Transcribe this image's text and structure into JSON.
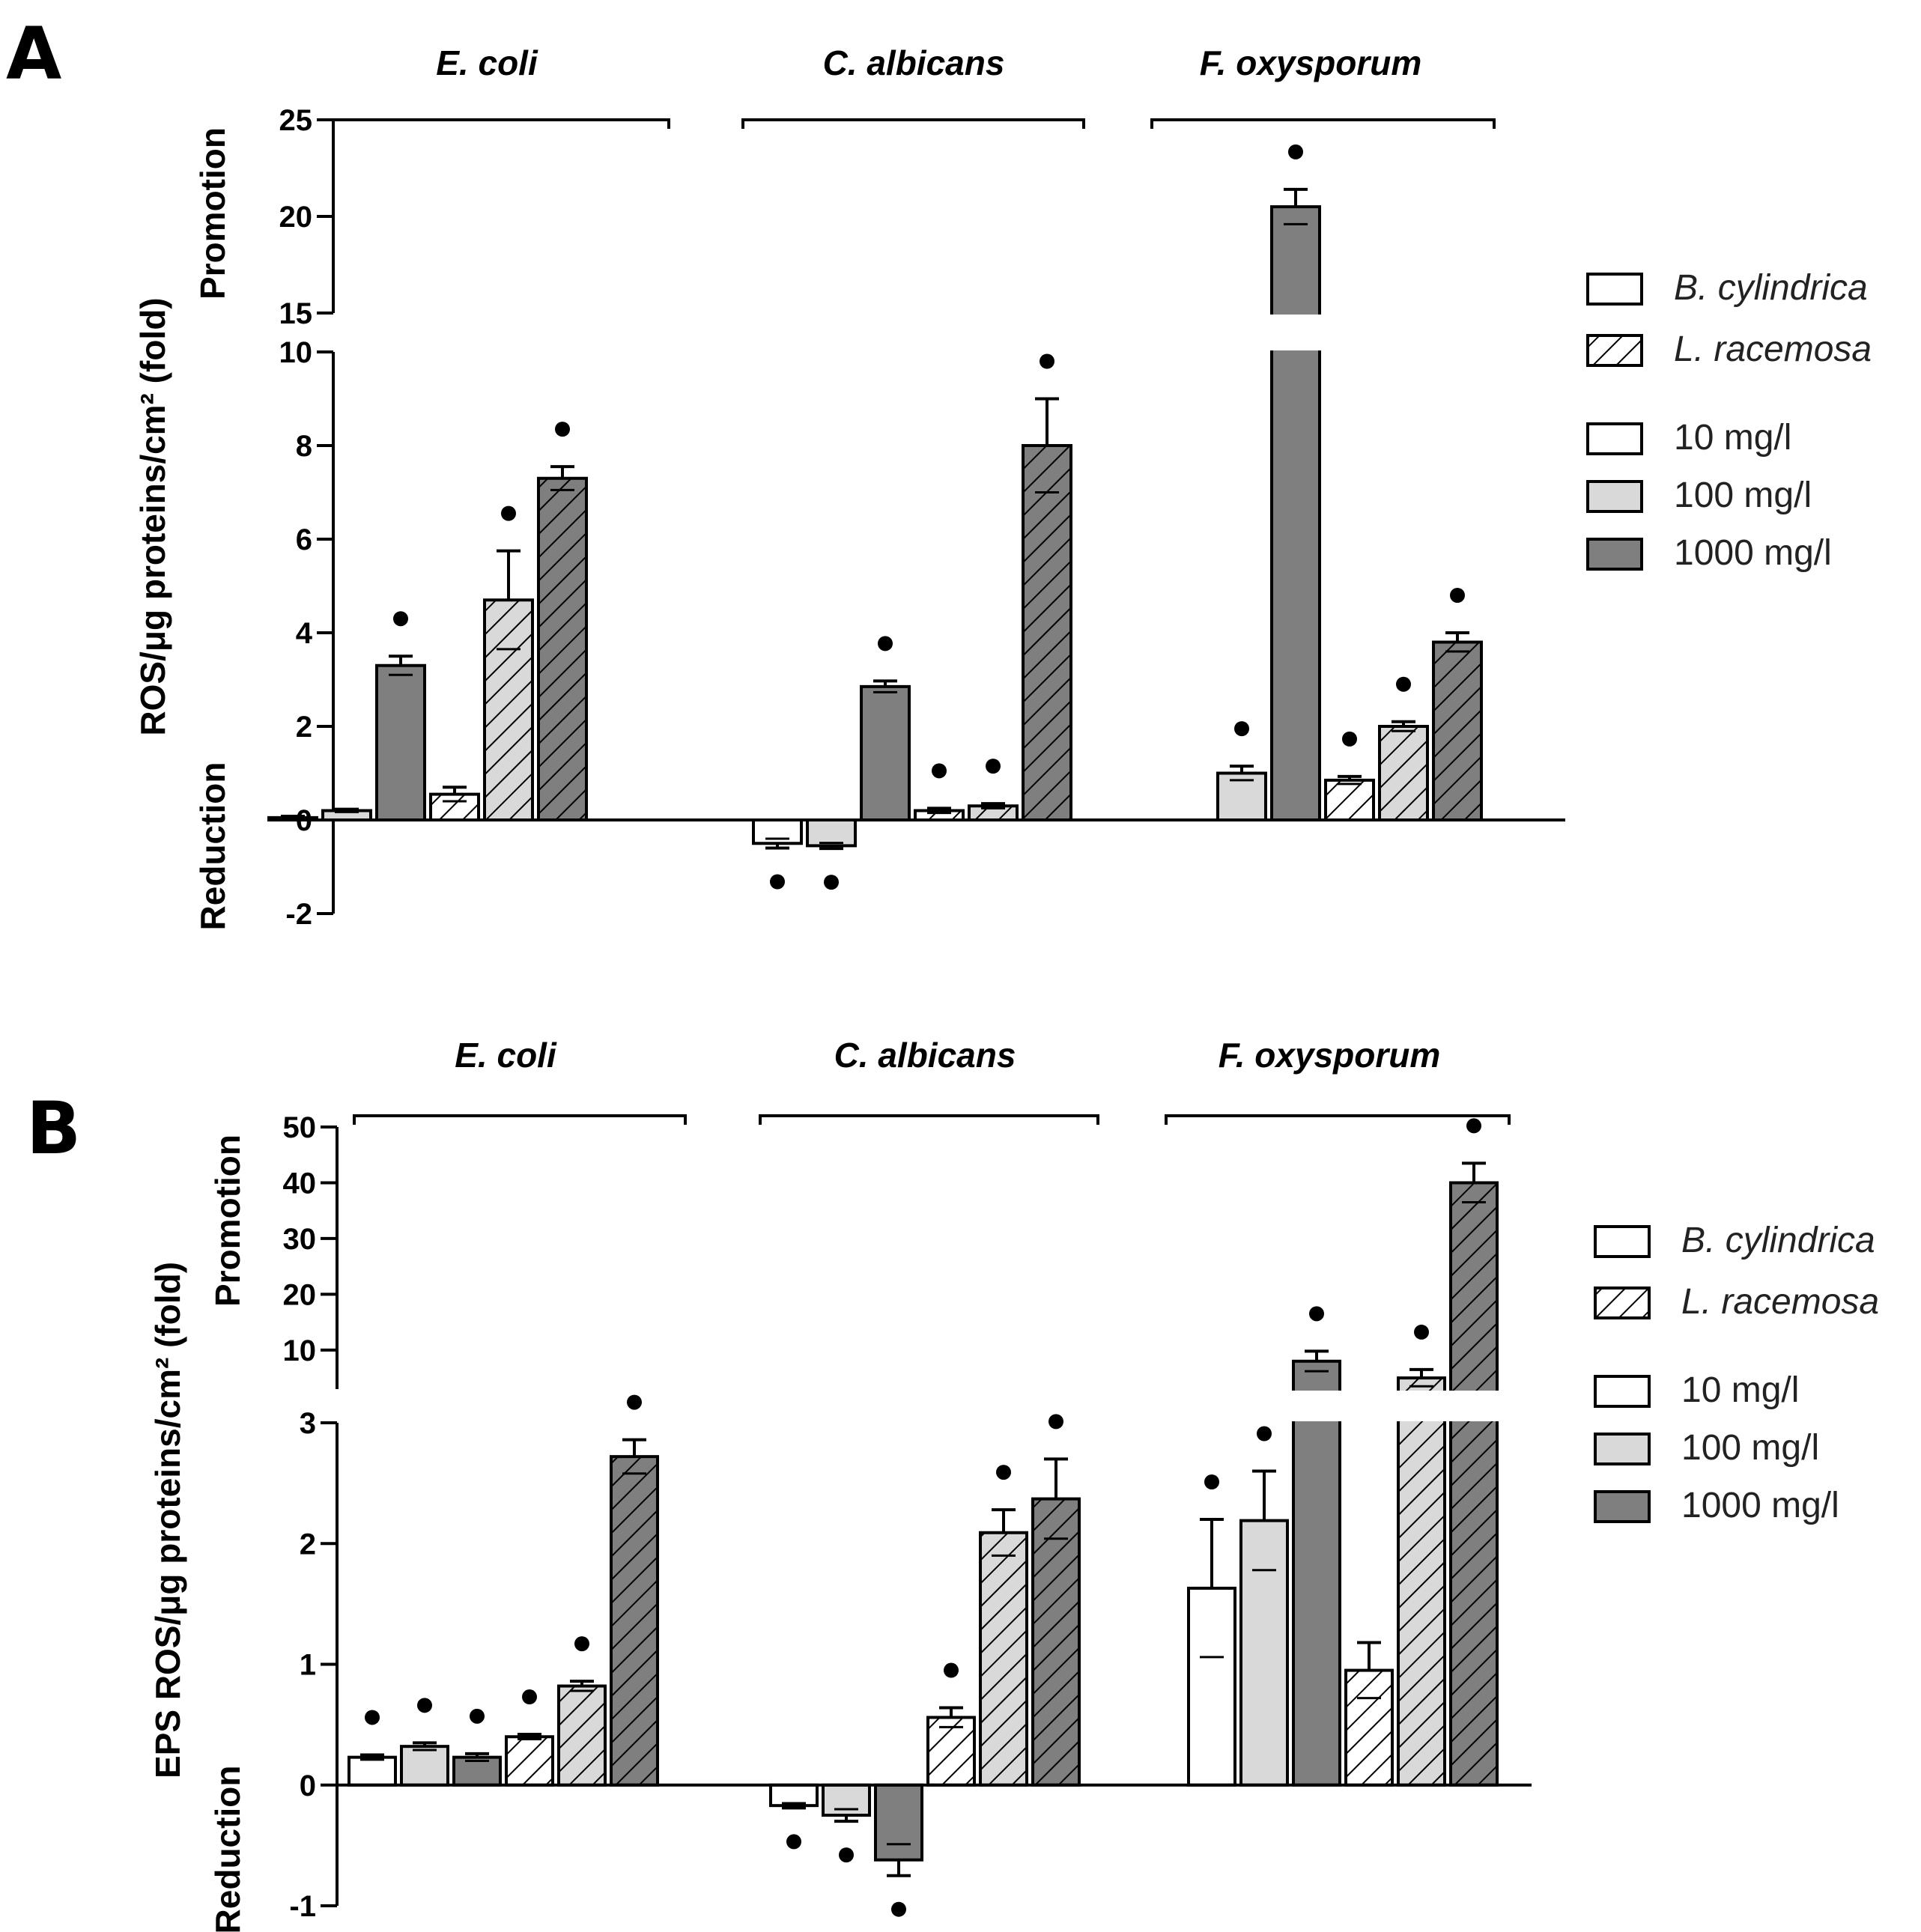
{
  "colors": {
    "low": "#ffffff",
    "mid": "#d9d9d9",
    "high": "#7f7f7f",
    "stroke": "#000000"
  },
  "legend": {
    "species": [
      {
        "label": "B. cylindrica",
        "hatch": false
      },
      {
        "label": "L. racemosa",
        "hatch": true
      }
    ],
    "concentrations": [
      {
        "label": "10 mg/l",
        "level": "low"
      },
      {
        "label": "100 mg/l",
        "level": "mid"
      },
      {
        "label": "1000 mg/l",
        "level": "high"
      }
    ]
  },
  "chart_data": [
    {
      "panel": "A",
      "type": "bar",
      "ylabel": "ROS/μg proteins/cm² (fold)",
      "ylabel_promotion": "Promotion",
      "ylabel_reduction": "Reduction",
      "axis_break": {
        "lower_range": [
          -2,
          10
        ],
        "upper_range": [
          15,
          25
        ]
      },
      "lower_ticks": [
        "-2",
        "0",
        "2",
        "4",
        "6",
        "8",
        "10"
      ],
      "upper_ticks": [
        "15",
        "20",
        "25"
      ],
      "groups": [
        "E. coli",
        "C. albicans",
        "F. oxysporum"
      ],
      "bar_order": [
        "B. cylindrica 10 mg/l",
        "B. cylindrica 100 mg/l",
        "B. cylindrica 1000 mg/l",
        "L. racemosa 10 mg/l",
        "L. racemosa 100 mg/l",
        "L. racemosa 1000 mg/l"
      ],
      "series": [
        {
          "group": "E. coli",
          "values": [
            0.05,
            0.2,
            3.3,
            0.55,
            4.7,
            7.3
          ],
          "errors": [
            0.03,
            0.03,
            0.2,
            0.15,
            1.05,
            0.25
          ],
          "significant": [
            false,
            false,
            true,
            false,
            true,
            true
          ]
        },
        {
          "group": "C. albicans",
          "values": [
            -0.5,
            -0.55,
            2.85,
            0.2,
            0.3,
            8.0
          ],
          "errors": [
            0.1,
            0.06,
            0.12,
            0.05,
            0.05,
            1.0
          ],
          "significant": [
            true,
            true,
            true,
            true,
            true,
            true
          ]
        },
        {
          "group": "F. oxysporum",
          "values": [
            0.0,
            1.0,
            20.5,
            0.85,
            2.0,
            3.8
          ],
          "errors": [
            0.0,
            0.15,
            0.9,
            0.08,
            0.1,
            0.2
          ],
          "significant": [
            false,
            true,
            true,
            true,
            true,
            true
          ]
        }
      ]
    },
    {
      "panel": "B",
      "type": "bar",
      "ylabel": "EPS ROS/μg proteins/cm² (fold)",
      "ylabel_promotion": "Promotion",
      "ylabel_reduction": "Reduction",
      "axis_break": {
        "lower_range": [
          -1,
          3
        ],
        "upper_range": [
          3,
          50
        ]
      },
      "lower_ticks": [
        "-1",
        "0",
        "1",
        "2",
        "3"
      ],
      "upper_ticks": [
        "10",
        "20",
        "30",
        "40",
        "50"
      ],
      "groups": [
        "E. coli",
        "C. albicans",
        "F. oxysporum"
      ],
      "bar_order": [
        "B. cylindrica 10 mg/l",
        "B. cylindrica 100 mg/l",
        "B. cylindrica 1000 mg/l",
        "L. racemosa 10 mg/l",
        "L. racemosa 100 mg/l",
        "L. racemosa 1000 mg/l"
      ],
      "series": [
        {
          "group": "E. coli",
          "values": [
            0.23,
            0.32,
            0.23,
            0.4,
            0.82,
            2.72
          ],
          "errors": [
            0.02,
            0.03,
            0.03,
            0.02,
            0.04,
            0.14
          ],
          "significant": [
            true,
            true,
            true,
            true,
            true,
            true
          ]
        },
        {
          "group": "C. albicans",
          "values": [
            -0.17,
            -0.25,
            -0.62,
            0.56,
            2.09,
            2.37
          ],
          "errors": [
            0.02,
            0.05,
            0.13,
            0.08,
            0.19,
            0.33
          ],
          "significant": [
            true,
            true,
            true,
            true,
            true,
            true
          ]
        },
        {
          "group": "F. oxysporum",
          "values": [
            1.63,
            2.19,
            8.0,
            0.95,
            5.0,
            40.0
          ],
          "errors": [
            0.57,
            0.41,
            1.8,
            0.23,
            1.5,
            3.5
          ],
          "significant": [
            true,
            true,
            true,
            false,
            true,
            true
          ]
        }
      ]
    }
  ]
}
